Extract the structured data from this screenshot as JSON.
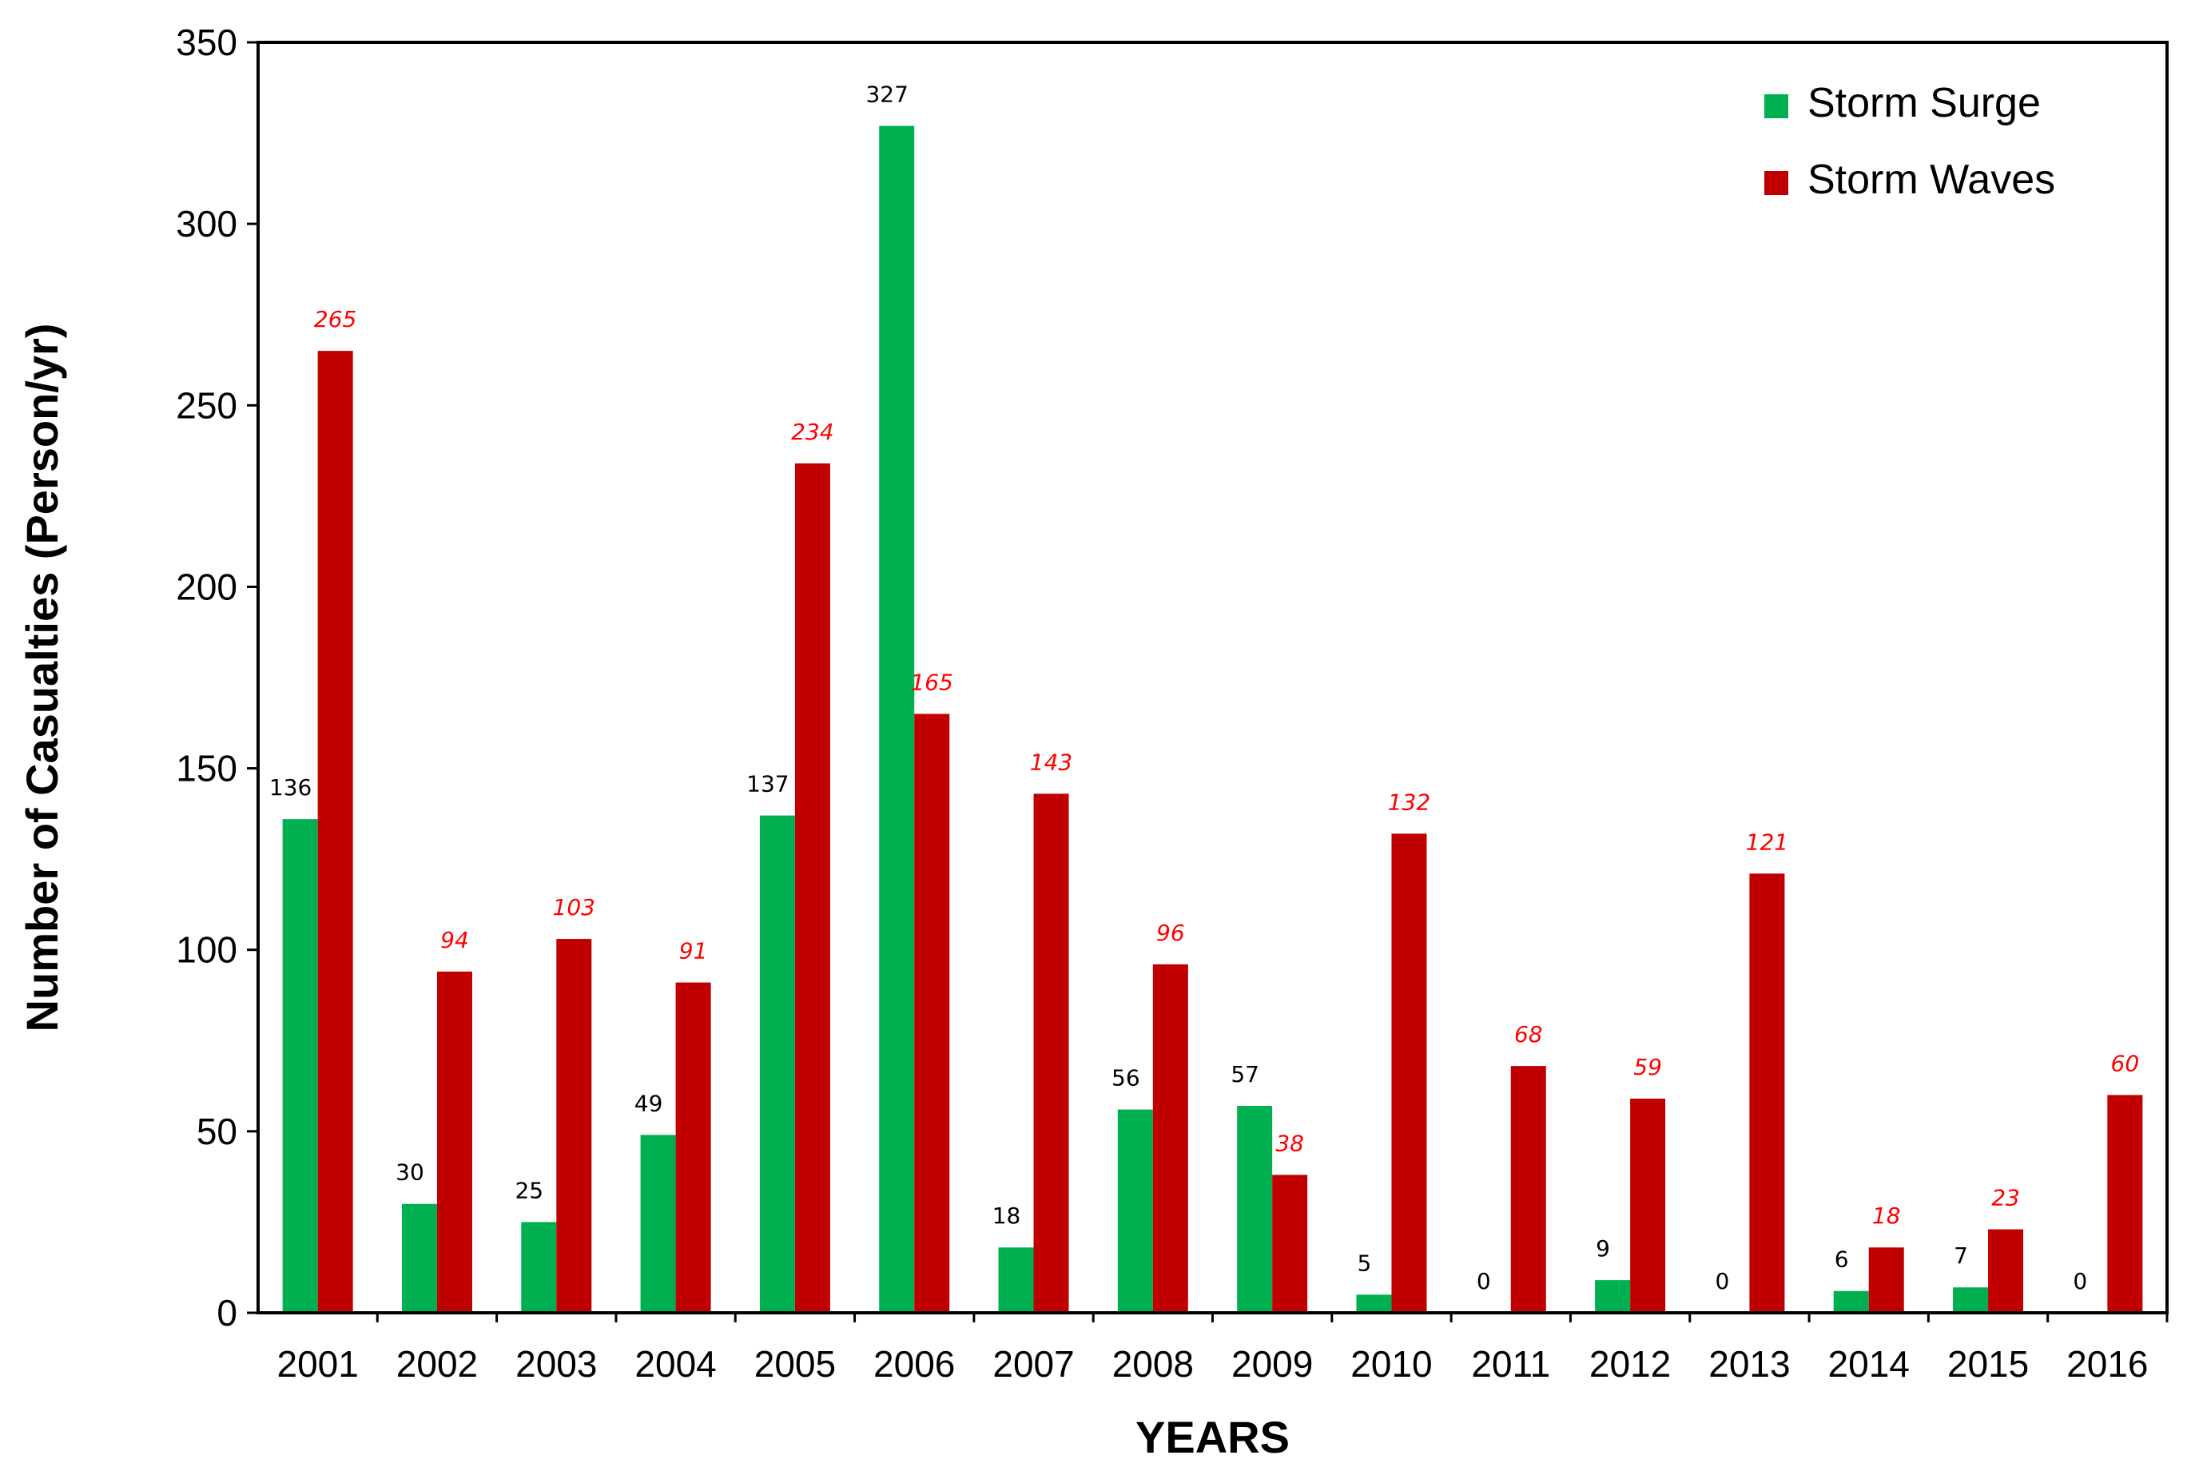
{
  "chart_data": {
    "type": "bar",
    "categories": [
      "2001",
      "2002",
      "2003",
      "2004",
      "2005",
      "2006",
      "2007",
      "2008",
      "2009",
      "2010",
      "2011",
      "2012",
      "2013",
      "2014",
      "2015",
      "2016"
    ],
    "series": [
      {
        "name": "Storm Surge",
        "color": "#00b050",
        "label_color": "#000000",
        "values": [
          136,
          30,
          25,
          49,
          137,
          327,
          18,
          56,
          57,
          5,
          0,
          9,
          0,
          6,
          7,
          0
        ]
      },
      {
        "name": "Storm Waves",
        "color": "#c00000",
        "label_color": "#ff0000",
        "values": [
          265,
          94,
          103,
          91,
          234,
          165,
          143,
          96,
          38,
          132,
          68,
          59,
          121,
          18,
          23,
          60
        ]
      }
    ],
    "title": "",
    "xlabel": "YEARS",
    "ylabel": "Number of Casualties (Person/yr)",
    "ylim": [
      0,
      350
    ],
    "yticks": [
      0,
      50,
      100,
      150,
      200,
      250,
      300,
      350
    ],
    "grid": false,
    "legend_position": "top-right"
  }
}
